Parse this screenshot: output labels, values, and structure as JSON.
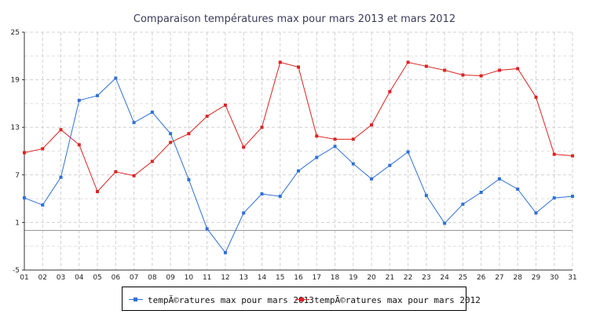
{
  "chart_data": {
    "type": "line",
    "title": "Comparaison températures max pour mars 2013 et mars 2012",
    "categories": [
      "01",
      "02",
      "03",
      "04",
      "05",
      "06",
      "07",
      "08",
      "09",
      "10",
      "11",
      "12",
      "13",
      "14",
      "15",
      "16",
      "17",
      "18",
      "19",
      "20",
      "21",
      "22",
      "23",
      "24",
      "25",
      "26",
      "27",
      "28",
      "29",
      "30",
      "31"
    ],
    "yticks": [
      -5,
      1,
      7,
      13,
      19,
      25
    ],
    "ylim": [
      -5,
      25
    ],
    "baseline": 0,
    "grid": true,
    "legend_position": "bottom",
    "series": [
      {
        "name": "tempÃ©ratures max pour mars 2013",
        "color": "#2f6fd8",
        "values": [
          4.1,
          3.2,
          6.7,
          16.4,
          17.0,
          19.2,
          13.6,
          14.9,
          12.2,
          6.4,
          0.2,
          -2.8,
          2.2,
          4.6,
          4.3,
          7.5,
          9.2,
          10.6,
          8.4,
          6.5,
          8.2,
          9.9,
          4.4,
          0.9,
          3.3,
          4.8,
          6.5,
          5.2,
          2.2,
          4.1,
          4.3
        ]
      },
      {
        "name": "tempÃ©ratures max pour mars 2012",
        "color": "#dd2222",
        "values": [
          9.8,
          10.3,
          12.7,
          10.8,
          4.9,
          7.4,
          6.9,
          8.7,
          11.1,
          12.2,
          14.4,
          15.8,
          10.5,
          13.0,
          21.2,
          20.6,
          11.9,
          11.5,
          11.5,
          13.3,
          17.5,
          21.2,
          20.7,
          20.2,
          19.6,
          19.5,
          20.2,
          20.4,
          16.8,
          9.6,
          9.4
        ]
      }
    ]
  }
}
